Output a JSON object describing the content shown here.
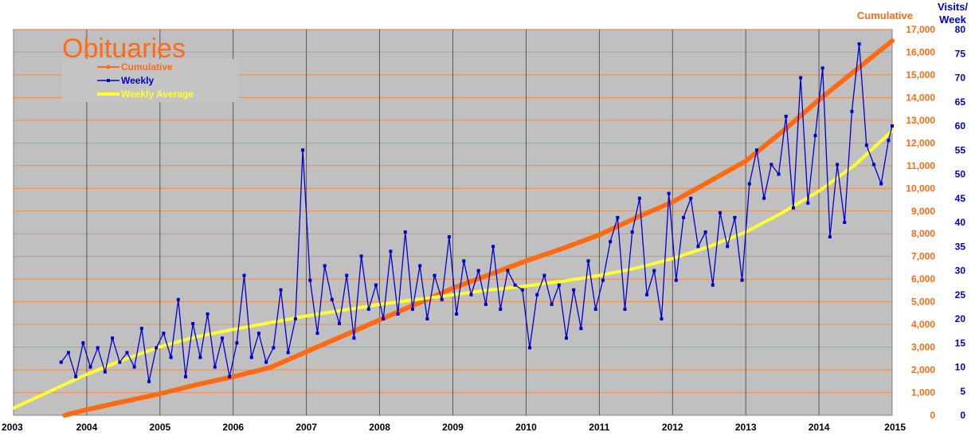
{
  "chart_data": {
    "type": "line",
    "title": "Obituaries",
    "left_axis_label": "Cumulative",
    "right_axis_label_line1": "Visits/",
    "right_axis_label_line2": "Week",
    "x_ticks": [
      "2003",
      "2004",
      "2005",
      "2006",
      "2007",
      "2008",
      "2009",
      "2010",
      "2011",
      "2012",
      "2013",
      "2014",
      "2015"
    ],
    "xlim": [
      2003,
      2015
    ],
    "y_left_ticks": [
      "0",
      "1,000",
      "2,000",
      "3,000",
      "4,000",
      "5,000",
      "6,000",
      "7,000",
      "8,000",
      "9,000",
      "10,000",
      "11,000",
      "12,000",
      "13,000",
      "14,000",
      "15,000",
      "16,000",
      "17,000"
    ],
    "y_left_lim": [
      0,
      17000
    ],
    "y_right_ticks": [
      "0",
      "5",
      "10",
      "15",
      "20",
      "25",
      "30",
      "35",
      "40",
      "45",
      "50",
      "55",
      "60",
      "65",
      "70",
      "75",
      "80"
    ],
    "y_right_lim": [
      0,
      80
    ],
    "grid": true,
    "legend_placement": "top-left",
    "colors": {
      "background": "#c0c0c0",
      "cumulative": "#ff6a13",
      "weekly": "#0000cc",
      "average": "#ffff33",
      "title": "#ff6a13",
      "left_axis": "#ff6a13",
      "right_axis": "#0000cc",
      "gridline_h": "#ff7f27",
      "gridline_v": "#404040"
    },
    "series": [
      {
        "name": "Cumulative",
        "axis": "left",
        "x": [
          2003.7,
          2004.0,
          2004.5,
          2005.0,
          2005.5,
          2006.0,
          2006.5,
          2007.0,
          2007.5,
          2008.0,
          2008.5,
          2009.0,
          2009.5,
          2010.0,
          2010.5,
          2011.0,
          2011.5,
          2012.0,
          2012.5,
          2013.0,
          2013.5,
          2014.0,
          2014.5,
          2015.0
        ],
        "values": [
          0,
          250,
          600,
          950,
          1350,
          1700,
          2100,
          2800,
          3500,
          4200,
          4900,
          5600,
          6200,
          6800,
          7350,
          7950,
          8700,
          9400,
          10300,
          11200,
          12500,
          13900,
          15200,
          16500
        ]
      },
      {
        "name": "Weekly",
        "axis": "right",
        "x": [
          2003.65,
          2003.75,
          2003.85,
          2003.95,
          2004.05,
          2004.15,
          2004.25,
          2004.35,
          2004.45,
          2004.55,
          2004.65,
          2004.75,
          2004.85,
          2004.95,
          2005.05,
          2005.15,
          2005.25,
          2005.35,
          2005.45,
          2005.55,
          2005.65,
          2005.75,
          2005.85,
          2005.95,
          2006.05,
          2006.15,
          2006.25,
          2006.35,
          2006.45,
          2006.55,
          2006.65,
          2006.75,
          2006.85,
          2006.95,
          2007.05,
          2007.15,
          2007.25,
          2007.35,
          2007.45,
          2007.55,
          2007.65,
          2007.75,
          2007.85,
          2007.95,
          2008.05,
          2008.15,
          2008.25,
          2008.35,
          2008.45,
          2008.55,
          2008.65,
          2008.75,
          2008.85,
          2008.95,
          2009.05,
          2009.15,
          2009.25,
          2009.35,
          2009.45,
          2009.55,
          2009.65,
          2009.75,
          2009.85,
          2009.95,
          2010.05,
          2010.15,
          2010.25,
          2010.35,
          2010.45,
          2010.55,
          2010.65,
          2010.75,
          2010.85,
          2010.95,
          2011.05,
          2011.15,
          2011.25,
          2011.35,
          2011.45,
          2011.55,
          2011.65,
          2011.75,
          2011.85,
          2011.95,
          2012.05,
          2012.15,
          2012.25,
          2012.35,
          2012.45,
          2012.55,
          2012.65,
          2012.75,
          2012.85,
          2012.95,
          2013.05,
          2013.15,
          2013.25,
          2013.35,
          2013.45,
          2013.55,
          2013.65,
          2013.75,
          2013.85,
          2013.95,
          2014.05,
          2014.15,
          2014.25,
          2014.35,
          2014.45,
          2014.55,
          2014.65,
          2014.75,
          2014.85,
          2014.95,
          2015.0
        ],
        "values": [
          11,
          13,
          8,
          15,
          10,
          14,
          9,
          16,
          11,
          13,
          10,
          18,
          7,
          14,
          17,
          12,
          24,
          8,
          19,
          12,
          21,
          10,
          16,
          8,
          15,
          29,
          12,
          17,
          11,
          14,
          26,
          13,
          20,
          55,
          28,
          17,
          31,
          24,
          19,
          29,
          16,
          33,
          22,
          27,
          20,
          34,
          21,
          38,
          22,
          31,
          20,
          29,
          24,
          37,
          21,
          32,
          25,
          30,
          23,
          35,
          22,
          30,
          27,
          26,
          14,
          25,
          29,
          23,
          27,
          16,
          26,
          18,
          32,
          22,
          28,
          36,
          41,
          22,
          38,
          45,
          25,
          30,
          20,
          46,
          28,
          41,
          45,
          35,
          38,
          27,
          42,
          35,
          41,
          28,
          48,
          55,
          45,
          52,
          50,
          62,
          43,
          70,
          44,
          58,
          72,
          37,
          52,
          40,
          63,
          77,
          56,
          52,
          48,
          57,
          60
        ]
      },
      {
        "name": "Weekly Average",
        "axis": "right",
        "x": [
          2003.0,
          2003.5,
          2004.0,
          2004.5,
          2005.0,
          2005.5,
          2006.0,
          2006.5,
          2007.0,
          2007.5,
          2008.0,
          2008.5,
          2009.0,
          2009.5,
          2010.0,
          2010.5,
          2011.0,
          2011.5,
          2012.0,
          2012.5,
          2013.0,
          2013.5,
          2014.0,
          2014.5,
          2015.0
        ],
        "values": [
          1.5,
          5,
          8.5,
          11.5,
          14.2,
          16.3,
          17.8,
          19.2,
          20.6,
          21.8,
          23,
          24,
          25,
          26,
          26.8,
          27.8,
          29,
          30.5,
          32.5,
          35,
          38,
          42,
          46.5,
          52,
          59
        ]
      }
    ]
  }
}
